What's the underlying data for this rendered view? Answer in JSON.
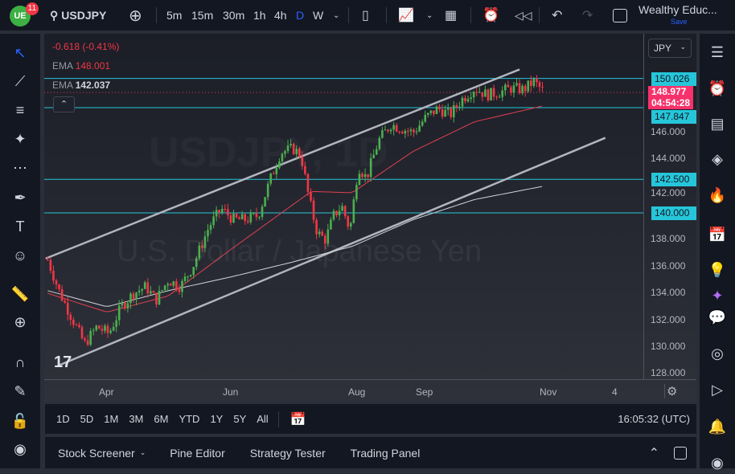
{
  "topbar": {
    "notif_count": "11",
    "symbol": "USDJPY",
    "intervals": [
      "5m",
      "15m",
      "30m",
      "1h",
      "4h",
      "D",
      "W"
    ],
    "active_interval": "D",
    "layout_name": "Wealthy Educ...",
    "save_label": "Save"
  },
  "legend": {
    "change": "-0.618 (-0.41%)",
    "ema1_label": "EMA",
    "ema1_value": "148.001",
    "ema2_label": "EMA",
    "ema2_value": "142.037"
  },
  "watermark": {
    "line1": "USDJPY, 1D",
    "line2": "U.S. Dollar / Japanese Yen"
  },
  "price_axis": {
    "currency": "JPY",
    "ticks": [
      "146.000",
      "144.000",
      "142.000",
      "138.000",
      "136.000",
      "134.000",
      "132.000",
      "130.000",
      "128.000"
    ],
    "labels": {
      "h1": "150.026",
      "last": "148.977",
      "countdown": "04:54:28",
      "h2": "147.847",
      "h3": "142.500",
      "h4": "140.000"
    }
  },
  "time_axis": {
    "labels": [
      "Apr",
      "Jun",
      "Aug",
      "Sep",
      "Nov",
      "4"
    ]
  },
  "range_bar": {
    "ranges": [
      "1D",
      "5D",
      "1M",
      "3M",
      "6M",
      "YTD",
      "1Y",
      "5Y",
      "All"
    ],
    "clock": "16:05:32 (UTC)"
  },
  "bottom_panel": {
    "tabs": [
      "Stock Screener",
      "Pine Editor",
      "Strategy Tester",
      "Trading Panel"
    ]
  },
  "colors": {
    "up": "#4caf50",
    "down": "#f23645",
    "hline": "#26c6da",
    "ema50": "#e0404f",
    "ema200": "#d1d4dc",
    "accent": "#2962ff"
  },
  "chart_data": {
    "type": "candlestick",
    "symbol": "USDJPY",
    "timeframe": "1D",
    "x_unit": "days since Apr 1",
    "ylim": [
      127.5,
      153
    ],
    "close_path": [
      [
        -29,
        136.5
      ],
      [
        -23,
        134
      ],
      [
        -15,
        131.5
      ],
      [
        -11,
        130.2
      ],
      [
        -5,
        131.5
      ],
      [
        1,
        131
      ],
      [
        7,
        133
      ],
      [
        13,
        134
      ],
      [
        19,
        134.5
      ],
      [
        24,
        133.5
      ],
      [
        30,
        135
      ],
      [
        36,
        134.5
      ],
      [
        42,
        136
      ],
      [
        50,
        139
      ],
      [
        56,
        140.3
      ],
      [
        62,
        139.5
      ],
      [
        68,
        139.5
      ],
      [
        74,
        139.8
      ],
      [
        80,
        142.5
      ],
      [
        85,
        144.5
      ],
      [
        91,
        144.8
      ],
      [
        95,
        144.3
      ],
      [
        99,
        141
      ],
      [
        103,
        138.5
      ],
      [
        107,
        138
      ],
      [
        111,
        139.8
      ],
      [
        115,
        140.5
      ],
      [
        119,
        138.7
      ],
      [
        123,
        143.5
      ],
      [
        127,
        142.6
      ],
      [
        133,
        145.4
      ],
      [
        139,
        146.6
      ],
      [
        144,
        146.3
      ],
      [
        150,
        146
      ],
      [
        156,
        147.1
      ],
      [
        162,
        147.8
      ],
      [
        168,
        147.3
      ],
      [
        174,
        148.5
      ],
      [
        180,
        149.3
      ],
      [
        186,
        148.8
      ],
      [
        192,
        149
      ],
      [
        198,
        149.3
      ],
      [
        204,
        149.2
      ],
      [
        209,
        149.8
      ],
      [
        214,
        148.98
      ]
    ],
    "ema50": [
      [
        -29,
        134.0
      ],
      [
        0,
        132.6
      ],
      [
        30,
        133.8
      ],
      [
        60,
        137.2
      ],
      [
        90,
        140.5
      ],
      [
        100,
        141.6
      ],
      [
        120,
        141.5
      ],
      [
        150,
        144.6
      ],
      [
        180,
        146.8
      ],
      [
        214,
        148.0
      ]
    ],
    "ema200": [
      [
        -29,
        134.2
      ],
      [
        0,
        133.0
      ],
      [
        30,
        134.2
      ],
      [
        60,
        135.2
      ],
      [
        90,
        136.3
      ],
      [
        120,
        137.5
      ],
      [
        150,
        139.5
      ],
      [
        180,
        141.0
      ],
      [
        214,
        142.0
      ]
    ],
    "horizontal_levels": [
      150.026,
      147.847,
      142.5,
      140.0
    ],
    "trendlines": [
      [
        [
          -30,
          136.6
        ],
        [
          202,
          150.7
        ]
      ],
      [
        [
          -24,
          128.6
        ],
        [
          244,
          145.6
        ]
      ]
    ]
  }
}
